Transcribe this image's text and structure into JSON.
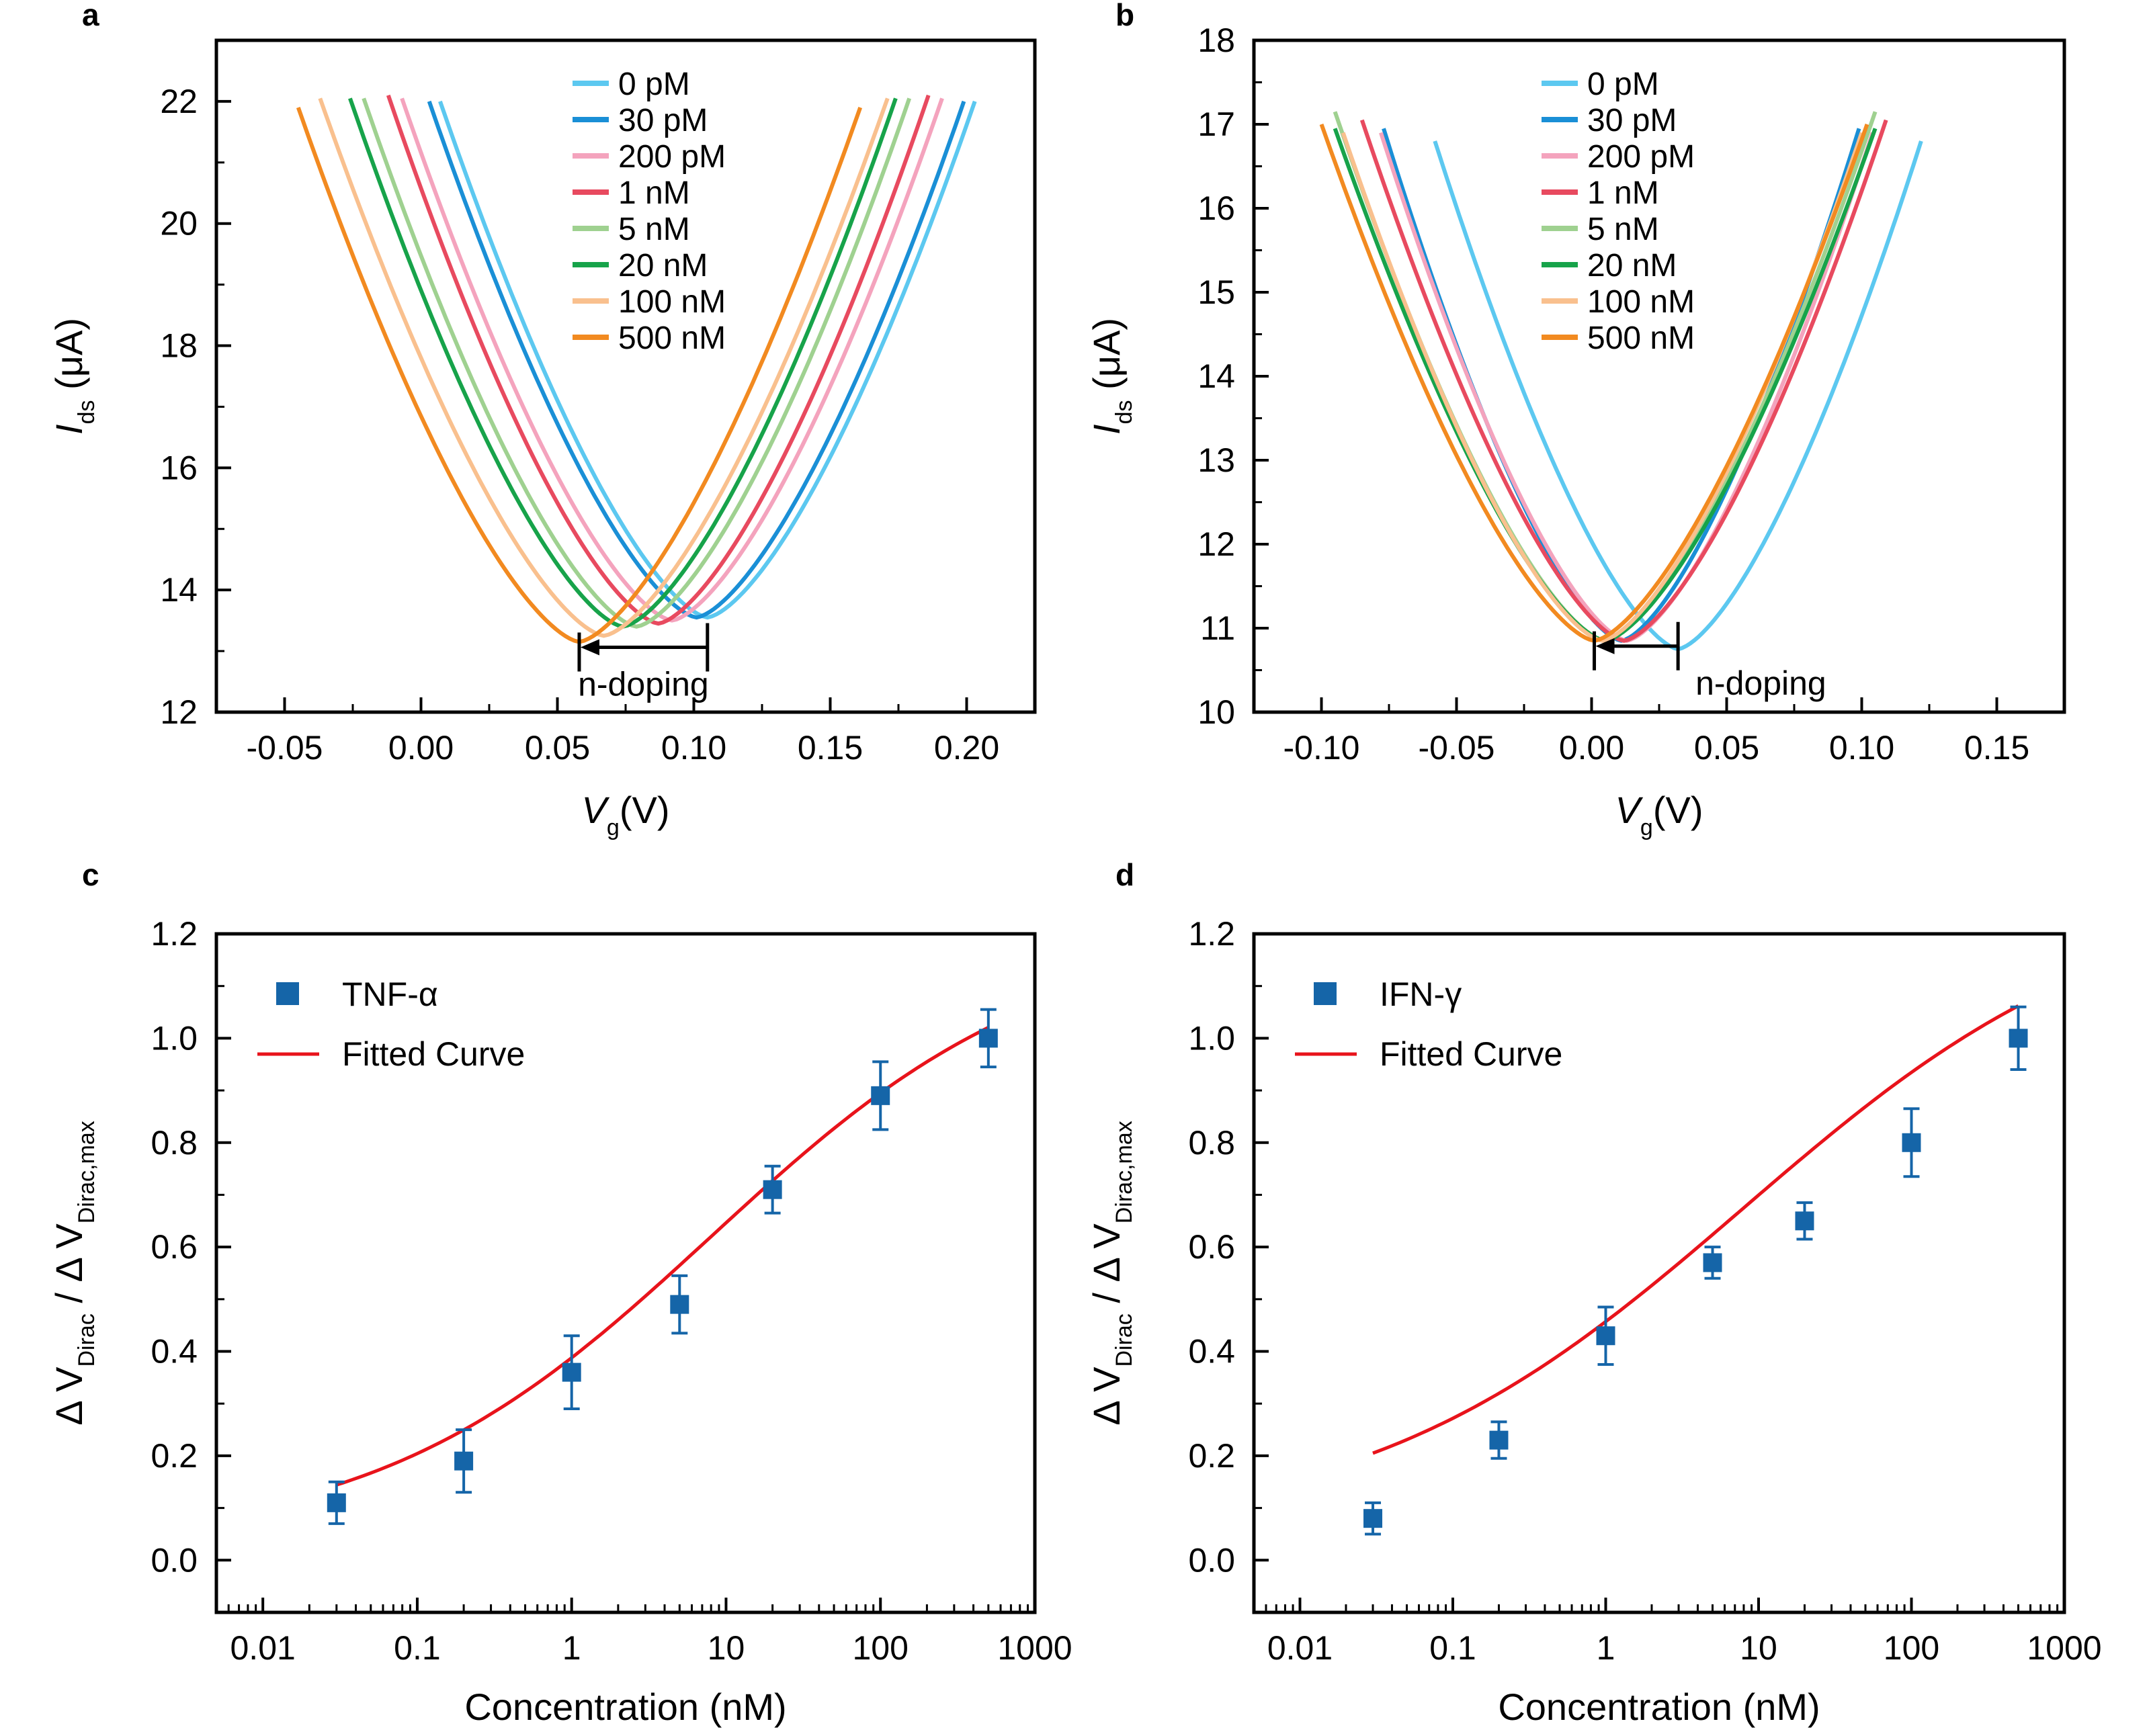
{
  "panels": {
    "a": {
      "label": "a"
    },
    "b": {
      "label": "b"
    },
    "c": {
      "label": "c"
    },
    "d": {
      "label": "d"
    }
  },
  "chart_data": [
    {
      "id": "a",
      "type": "line",
      "xlabel": {
        "main": "V",
        "sub": "g",
        "unit": "(V)"
      },
      "ylabel": {
        "main": "I",
        "sub": "ds",
        "unit": "(μA)"
      },
      "xlim": [
        -0.075,
        0.225
      ],
      "ylim": [
        12,
        23
      ],
      "xticks": [
        -0.05,
        0.0,
        0.05,
        0.1,
        0.15,
        0.2
      ],
      "xtick_labels": [
        "-0.05",
        "0.00",
        "0.05",
        "0.10",
        "0.15",
        "0.20"
      ],
      "yticks": [
        12,
        14,
        16,
        18,
        20,
        22
      ],
      "ytick_labels": [
        "12",
        "14",
        "16",
        "18",
        "20",
        "22"
      ],
      "legend": "top-center",
      "curve_model": "v-shaped transfer curve: I = Imin + (Imax - Imin) * ((|Vg - Vdirac| / halfwidth) ^ 1.5), Vg from Vdirac - halfwidth to Vdirac + halfwidth",
      "series": [
        {
          "name": "0 pM",
          "color": "#5cc8f0",
          "dirac": 0.105,
          "imin": 13.55,
          "imax": 22.0,
          "halfwidth": 0.098
        },
        {
          "name": "30 pM",
          "color": "#1a8fd6",
          "dirac": 0.101,
          "imin": 13.55,
          "imax": 22.0,
          "halfwidth": 0.098
        },
        {
          "name": "200 pM",
          "color": "#f4a3bd",
          "dirac": 0.092,
          "imin": 13.5,
          "imax": 22.05,
          "halfwidth": 0.099
        },
        {
          "name": "1 nM",
          "color": "#e84a5f",
          "dirac": 0.087,
          "imin": 13.45,
          "imax": 22.1,
          "halfwidth": 0.099
        },
        {
          "name": "5 nM",
          "color": "#9fd190",
          "dirac": 0.079,
          "imin": 13.4,
          "imax": 22.05,
          "halfwidth": 0.1
        },
        {
          "name": "20 nM",
          "color": "#17a34a",
          "dirac": 0.074,
          "imin": 13.4,
          "imax": 22.05,
          "halfwidth": 0.1
        },
        {
          "name": "100 nM",
          "color": "#f9c08e",
          "dirac": 0.067,
          "imin": 13.25,
          "imax": 22.05,
          "halfwidth": 0.104
        },
        {
          "name": "500 nM",
          "color": "#f28a20",
          "dirac": 0.058,
          "imin": 13.15,
          "imax": 21.9,
          "halfwidth": 0.103
        }
      ],
      "annotation": {
        "text": "n-doping",
        "from_x": 0.105,
        "to_x": 0.058,
        "y": 13.15
      }
    },
    {
      "id": "b",
      "type": "line",
      "xlabel": {
        "main": "V",
        "sub": "g",
        "unit": "(V)"
      },
      "ylabel": {
        "main": "I",
        "sub": "ds",
        "unit": "(μA)"
      },
      "xlim": [
        -0.125,
        0.175
      ],
      "ylim": [
        10,
        18
      ],
      "xticks": [
        -0.1,
        -0.05,
        0.0,
        0.05,
        0.1,
        0.15
      ],
      "xtick_labels": [
        "-0.10",
        "-0.05",
        "0.00",
        "0.05",
        "0.10",
        "0.15"
      ],
      "yticks": [
        10,
        11,
        12,
        13,
        14,
        15,
        16,
        17,
        18
      ],
      "ytick_labels": [
        "10",
        "11",
        "12",
        "13",
        "14",
        "15",
        "16",
        "17",
        "18"
      ],
      "legend": "top-left",
      "curve_model": "v-shaped transfer curve: I = Imin + (Imax - Imin) * ((|Vg - Vdirac| / halfwidth) ^ 1.5), Vg from Vdirac - halfwidth to Vdirac + halfwidth",
      "series": [
        {
          "name": "0 pM",
          "color": "#5cc8f0",
          "dirac": 0.032,
          "imin": 10.75,
          "imax": 16.8,
          "halfwidth": 0.09
        },
        {
          "name": "30 pM",
          "color": "#1a8fd6",
          "dirac": 0.011,
          "imin": 10.85,
          "imax": 16.95,
          "halfwidth": 0.088
        },
        {
          "name": "200 pM",
          "color": "#f4a3bd",
          "dirac": 0.013,
          "imin": 10.85,
          "imax": 16.9,
          "halfwidth": 0.091
        },
        {
          "name": "1 nM",
          "color": "#e84a5f",
          "dirac": 0.012,
          "imin": 10.85,
          "imax": 17.05,
          "halfwidth": 0.097
        },
        {
          "name": "5 nM",
          "color": "#9fd190",
          "dirac": 0.005,
          "imin": 10.85,
          "imax": 17.15,
          "halfwidth": 0.1
        },
        {
          "name": "20 nM",
          "color": "#17a34a",
          "dirac": 0.005,
          "imin": 10.85,
          "imax": 16.95,
          "halfwidth": 0.1
        },
        {
          "name": "100 nM",
          "color": "#f9c08e",
          "dirac": 0.004,
          "imin": 10.85,
          "imax": 16.9,
          "halfwidth": 0.096
        },
        {
          "name": "500 nM",
          "color": "#f28a20",
          "dirac": 0.001,
          "imin": 10.85,
          "imax": 17.0,
          "halfwidth": 0.101
        }
      ],
      "annotation": {
        "text": "n-doping",
        "from_x": 0.032,
        "to_x": 0.001,
        "y": 10.85
      }
    },
    {
      "id": "c",
      "type": "scatter",
      "xscale": "log",
      "xlabel": {
        "main": "Concentration (nM)"
      },
      "ylabel": {
        "prefix": "Δ V",
        "sub1": "Dirac",
        "mid": " / Δ V",
        "sub2": "Dirac,max"
      },
      "xlim": [
        0.005,
        1000
      ],
      "ylim": [
        -0.1,
        1.2
      ],
      "xticks": [
        0.01,
        0.1,
        1,
        10,
        100,
        1000
      ],
      "xtick_labels": [
        "0.01",
        "0.1",
        "1",
        "10",
        "100",
        "1000"
      ],
      "yticks": [
        0.0,
        0.2,
        0.4,
        0.6,
        0.8,
        1.0,
        1.2
      ],
      "ytick_labels": [
        "0.0",
        "0.2",
        "0.4",
        "0.6",
        "0.8",
        "1.0",
        "1.2"
      ],
      "legend": "top-left",
      "series": [
        {
          "name": "TNF-α",
          "kind": "points",
          "color": "#1565a8",
          "x": [
            0.03,
            0.2,
            1,
            5,
            20,
            100,
            500
          ],
          "y": [
            0.11,
            0.19,
            0.36,
            0.49,
            0.71,
            0.89,
            1.0
          ],
          "err": [
            0.04,
            0.06,
            0.07,
            0.055,
            0.045,
            0.065,
            0.055
          ]
        },
        {
          "name": "Fitted Curve",
          "kind": "line",
          "color": "#e8131b",
          "model": "hill",
          "bottom": 0.03,
          "top": 1.21,
          "ec50": 8.0,
          "n": 0.4,
          "x_range": [
            0.03,
            500
          ]
        }
      ]
    },
    {
      "id": "d",
      "type": "scatter",
      "xscale": "log",
      "xlabel": {
        "main": "Concentration (nM)"
      },
      "ylabel": {
        "prefix": "Δ V",
        "sub1": "Dirac",
        "mid": " / Δ V",
        "sub2": "Dirac,max"
      },
      "xlim": [
        0.005,
        1000
      ],
      "ylim": [
        -0.1,
        1.2
      ],
      "xticks": [
        0.01,
        0.1,
        1,
        10,
        100,
        1000
      ],
      "xtick_labels": [
        "0.01",
        "0.1",
        "1",
        "10",
        "100",
        "1000"
      ],
      "yticks": [
        0.0,
        0.2,
        0.4,
        0.6,
        0.8,
        1.0,
        1.2
      ],
      "ytick_labels": [
        "0.0",
        "0.2",
        "0.4",
        "0.6",
        "0.8",
        "1.0",
        "1.2"
      ],
      "legend": "top-left",
      "series": [
        {
          "name": "IFN-γ",
          "kind": "points",
          "color": "#1565a8",
          "x": [
            0.03,
            0.2,
            1,
            5,
            20,
            100,
            500
          ],
          "y": [
            0.08,
            0.23,
            0.43,
            0.57,
            0.65,
            0.8,
            1.0
          ],
          "err": [
            0.03,
            0.035,
            0.055,
            0.03,
            0.035,
            0.065,
            0.06
          ]
        },
        {
          "name": "Fitted Curve",
          "kind": "line",
          "color": "#e8131b",
          "model": "hill",
          "bottom": 0.05,
          "top": 1.3,
          "ec50": 8.0,
          "n": 0.35,
          "x_range": [
            0.03,
            500
          ]
        }
      ]
    }
  ]
}
